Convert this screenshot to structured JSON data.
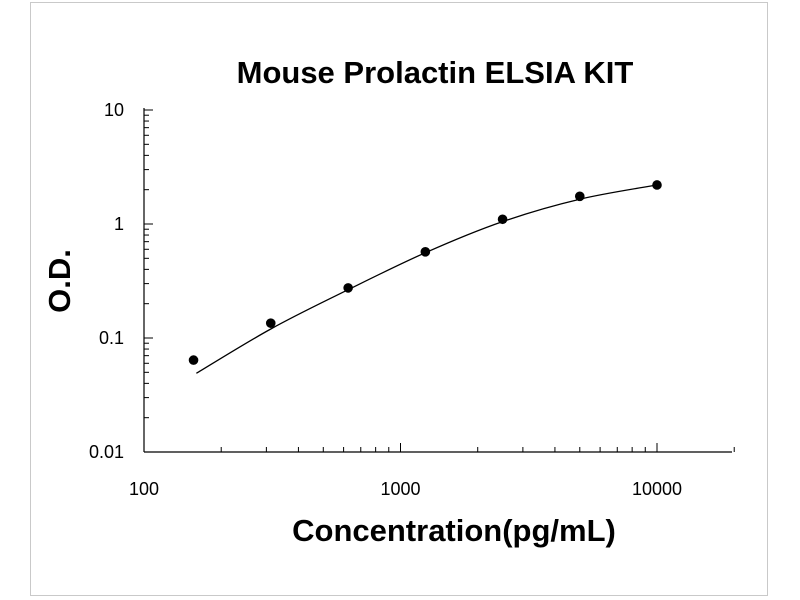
{
  "chart_data": {
    "type": "scatter",
    "title": "Mouse Prolactin ELSIA KIT",
    "xlabel": "Concentration(pg/mL)",
    "ylabel": "O.D.",
    "x_scale": "log",
    "y_scale": "log",
    "xlim": [
      100,
      20000
    ],
    "ylim": [
      0.01,
      10
    ],
    "x_ticks": [
      "100",
      "1000",
      "10000"
    ],
    "y_ticks": [
      "10",
      "1",
      "0.1",
      "0.01"
    ],
    "grid": false,
    "legend": "none",
    "series": [
      {
        "points": {
          "x": [
            156,
            312,
            625,
            1250,
            2500,
            5000,
            10000
          ],
          "y": [
            0.064,
            0.135,
            0.275,
            0.57,
            1.1,
            1.75,
            2.2
          ]
        },
        "fit_curve": {
          "x": [
            160,
            312,
            625,
            1250,
            2500,
            5000,
            10000
          ],
          "y": [
            0.049,
            0.12,
            0.265,
            0.56,
            1.05,
            1.65,
            2.2
          ]
        }
      }
    ]
  },
  "colors": {
    "marker": "#000000",
    "curve": "#000000",
    "axis": "#000000"
  }
}
